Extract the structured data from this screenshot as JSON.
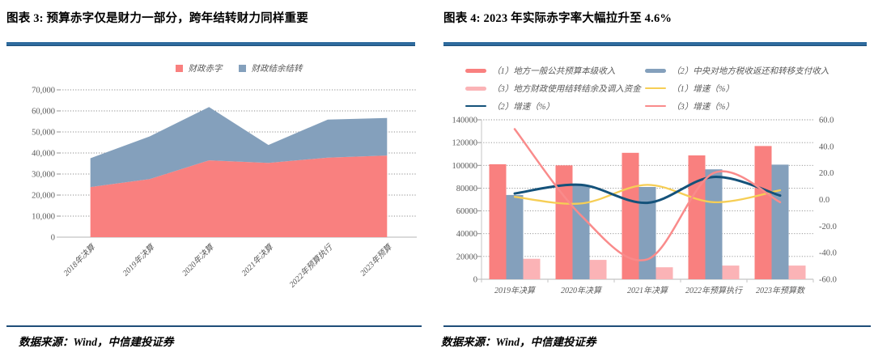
{
  "panels": [
    {
      "title": "图表 3: 预算赤字仅是财力一部分，跨年结转财力同样重要",
      "source": "数据来源：Wind，中信建投证券"
    },
    {
      "title": "图表 4: 2023 年实际赤字率大幅拉升至 4.6%",
      "source": "数据来源：Wind，中信建投证券"
    }
  ],
  "colors": {
    "red": "#F9807F",
    "blue": "#84A0BC",
    "pink": "#FBB3B6",
    "yellow": "#F6CE55",
    "navy": "#14527A",
    "salmon": "#F98B8B",
    "grid": "#8C8C8C",
    "axis": "#C4C4C4",
    "tick_text": "#595959",
    "title_rule": "#2E6B9E",
    "footer_rule": "#1F4E79"
  },
  "chart_data": [
    {
      "type": "area",
      "stacked": true,
      "title": "预算赤字仅是财力一部分，跨年结转财力同样重要",
      "categories": [
        "2018年决算",
        "2019年决算",
        "2020年决算",
        "2021年决算",
        "2022年预算执行",
        "2023年预算"
      ],
      "series": [
        {
          "name": "财政赤字",
          "color": "#F9807F",
          "values": [
            23800,
            27600,
            36500,
            35300,
            37800,
            38800
          ]
        },
        {
          "name": "财政结余结转",
          "color": "#84A0BC",
          "values": [
            13700,
            20300,
            25300,
            8500,
            18100,
            17800
          ]
        }
      ],
      "stacked_totals": [
        37500,
        47900,
        61800,
        43800,
        55900,
        56600
      ],
      "ylim": [
        0,
        70000
      ],
      "ytick_step": 10000,
      "yticks": [
        "70,000",
        "60,000",
        "50,000",
        "40,000",
        "30,000",
        "20,000",
        "10,000",
        "0"
      ],
      "grid": true,
      "legend_position": "top"
    },
    {
      "type": "combo",
      "title": "2023 年实际赤字率大幅拉升至 4.6%",
      "categories": [
        "2019年决算",
        "2020年决算",
        "2021年决算",
        "2022年预算执行",
        "2023年预算数"
      ],
      "bar_series": [
        {
          "name": "（1）地方一般公共预算本级收入",
          "color": "#F9807F",
          "values": [
            101000,
            100000,
            111000,
            108700,
            117000
          ]
        },
        {
          "name": "（2）中央对地方税收返还和转移支付收入",
          "color": "#84A0BC",
          "values": [
            74000,
            82500,
            81000,
            96500,
            100600
          ]
        },
        {
          "name": "（3）地方财政使用结转结余及调入资金",
          "color": "#FBB3B6",
          "values": [
            18000,
            17000,
            10500,
            12000,
            12000
          ]
        }
      ],
      "line_series": [
        {
          "name": "（1）增速（%）",
          "color": "#F6CE55",
          "width": 2.3,
          "values": [
            2,
            -3,
            11,
            -2,
            7
          ]
        },
        {
          "name": "（2）增速（%）",
          "color": "#14527A",
          "width": 3,
          "values": [
            4.5,
            11,
            -2.5,
            17,
            3
          ]
        },
        {
          "name": "（3）增速（%）",
          "color": "#F98B8B",
          "width": 2.5,
          "values": [
            53,
            -12,
            -45,
            20,
            -2
          ]
        }
      ],
      "left_ylim": [
        0,
        140000
      ],
      "left_ytick_step": 20000,
      "left_yticks": [
        "140000",
        "120000",
        "100000",
        "80000",
        "60000",
        "40000",
        "20000",
        "0"
      ],
      "right_ylim": [
        -60,
        60
      ],
      "right_ytick_step": 20,
      "right_yticks": [
        "60.0",
        "40.0",
        "20.0",
        "0.0",
        "-20.0",
        "-40.0",
        "-60.0"
      ],
      "grid": true,
      "legend_position": "top"
    }
  ],
  "legend_right_order": [
    {
      "label": "（1）地方一般公共预算本级收入",
      "swatch": "bar",
      "color": "#F9807F"
    },
    {
      "label": "（2）中央对地方税收返还和转移支付收入",
      "swatch": "bar",
      "color": "#84A0BC"
    },
    {
      "label": "（3）地方财政使用结转结余及调入资金",
      "swatch": "bar",
      "color": "#FBB3B6"
    },
    {
      "label": "（1）增速（%）",
      "swatch": "line",
      "color": "#F6CE55"
    },
    {
      "label": "（2）增速（%）",
      "swatch": "line",
      "color": "#14527A"
    },
    {
      "label": "（3）增速（%）",
      "swatch": "line",
      "color": "#F98B8B"
    }
  ]
}
